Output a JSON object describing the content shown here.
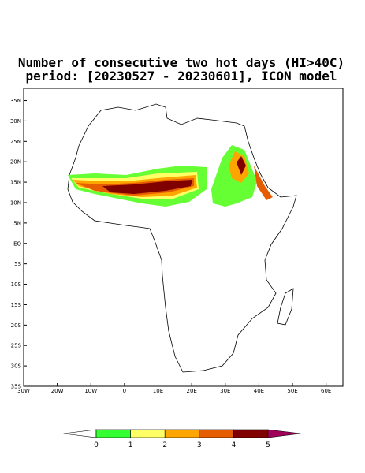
{
  "map": {
    "title_line_1": "Number of consecutive two hot days (HI>40C)",
    "title_line_2": "period: [20230527 - 20230601], ICON model",
    "xlim": [
      -30,
      65
    ],
    "ylim": [
      -35,
      38
    ],
    "xticks": [
      {
        "value": -30,
        "label": "30W"
      },
      {
        "value": -20,
        "label": "20W"
      },
      {
        "value": -10,
        "label": "10W"
      },
      0,
      {
        "value": 10,
        "label": "10E"
      },
      {
        "value": 20,
        "label": "20E"
      },
      {
        "value": 30,
        "label": "30E"
      },
      {
        "value": 40,
        "label": "40E"
      },
      {
        "value": 50,
        "label": "50E"
      },
      {
        "value": 60,
        "label": "60E"
      }
    ],
    "yticks": [
      {
        "value": 35,
        "label": "35N"
      },
      {
        "value": 30,
        "label": "30N"
      },
      {
        "value": 25,
        "label": "25N"
      },
      {
        "value": 20,
        "label": "20N"
      },
      {
        "value": 15,
        "label": "15N"
      },
      {
        "value": 10,
        "label": "10N"
      },
      {
        "value": 5,
        "label": "5N"
      },
      {
        "value": 0,
        "label": "EQ"
      },
      {
        "value": -5,
        "label": "5S"
      },
      {
        "value": -10,
        "label": "10S"
      },
      {
        "value": -15,
        "label": "15S"
      },
      {
        "value": -20,
        "label": "20S"
      },
      {
        "value": -25,
        "label": "25S"
      },
      {
        "value": -30,
        "label": "30S"
      },
      {
        "value": -35,
        "label": "35S"
      }
    ],
    "colorbar": {
      "levels": [
        0,
        1,
        2,
        3,
        4,
        5
      ],
      "colors": [
        "#ffffff",
        "#33ff33",
        "#ffff66",
        "#ffa500",
        "#e65c00",
        "#800000",
        "#a0005a"
      ]
    }
  }
}
